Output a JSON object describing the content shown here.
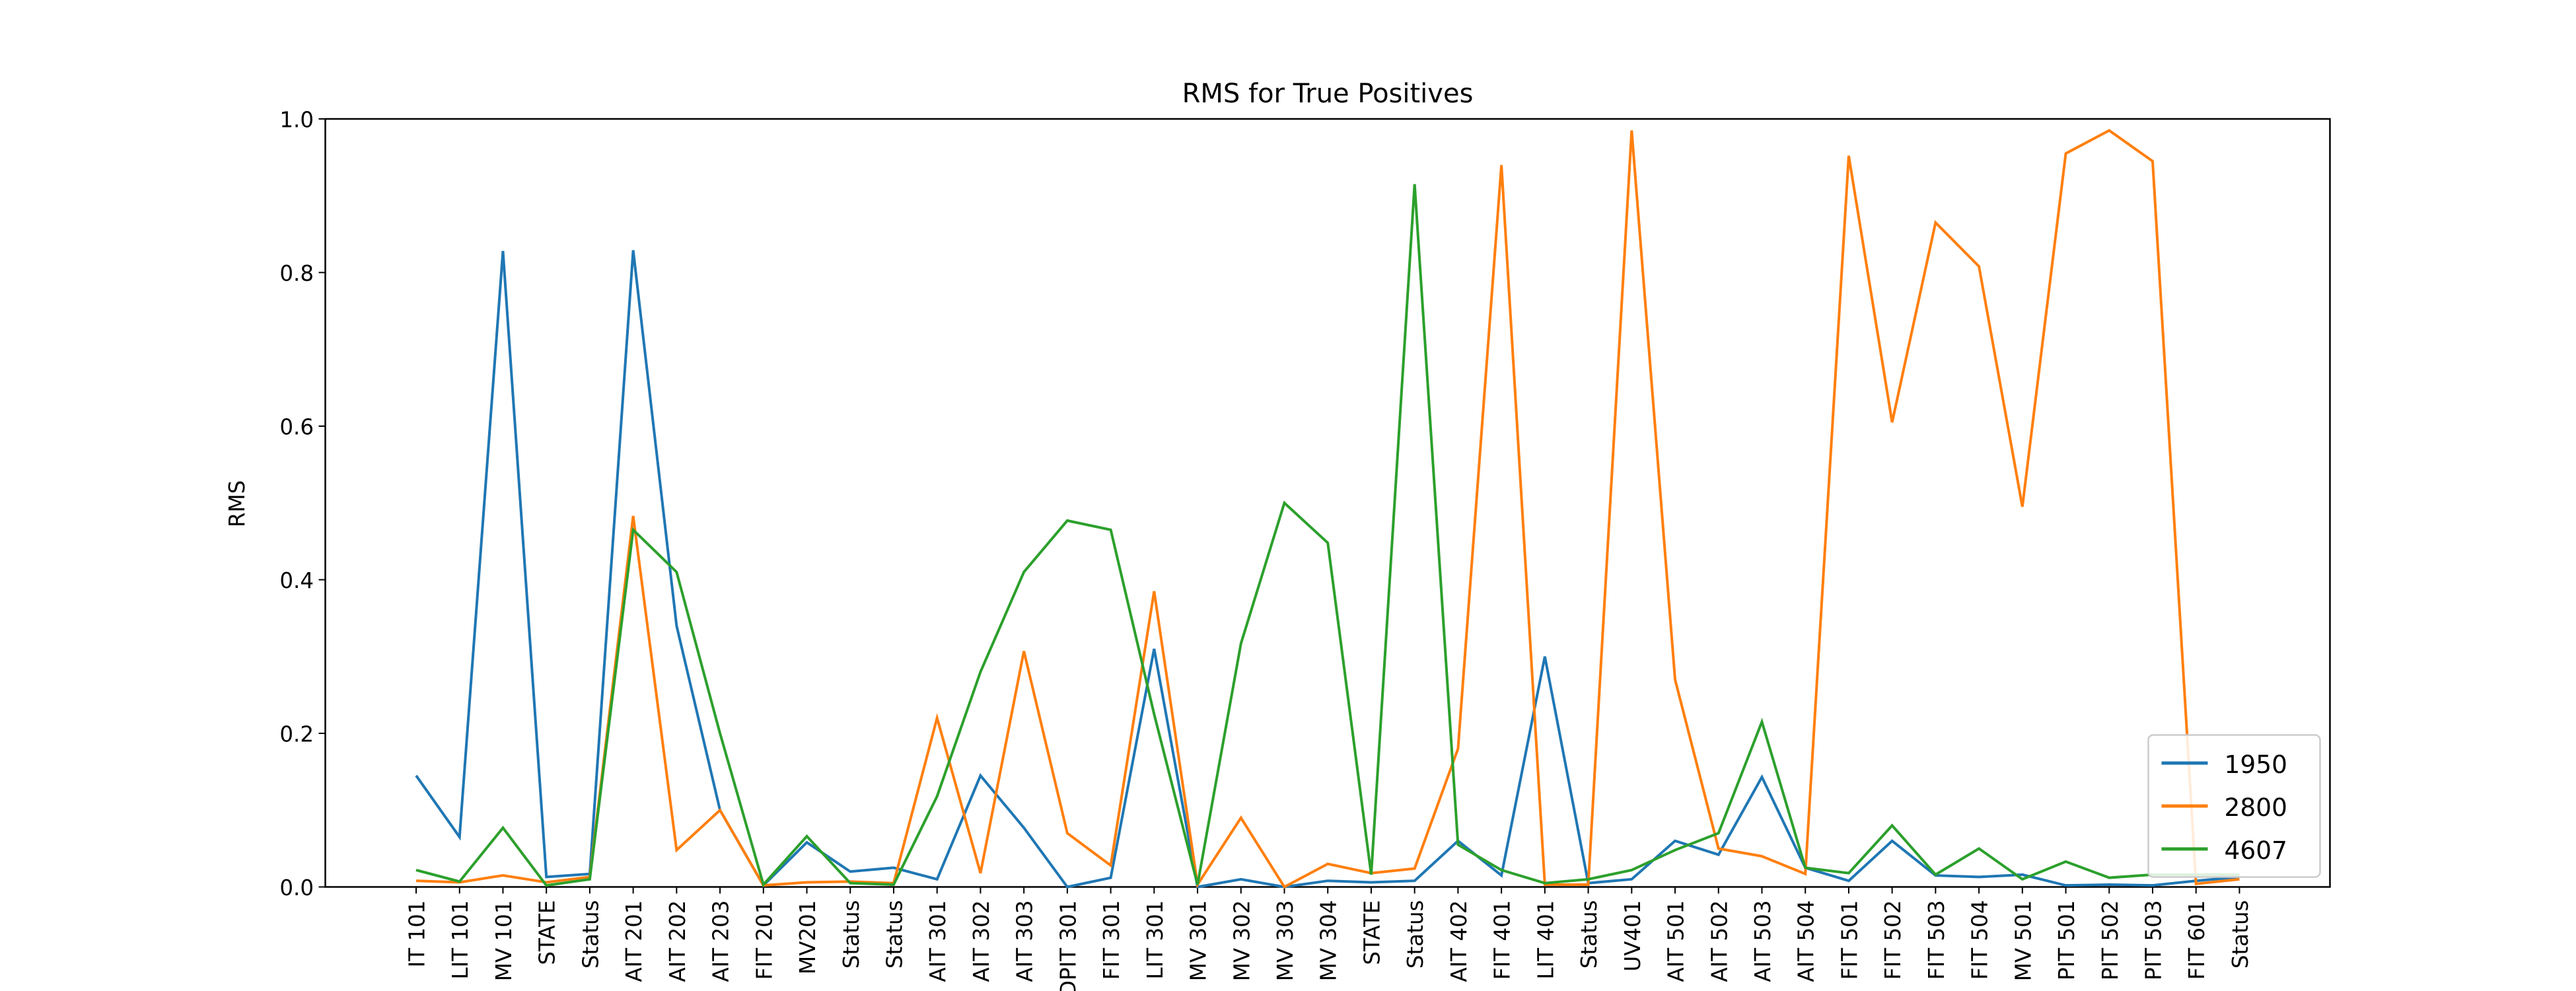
{
  "chart_data": {
    "type": "line",
    "title": "RMS for True Positives",
    "y_label": "RMS",
    "categories": [
      "IT 101",
      "LIT 101",
      "MV 101",
      "STATE",
      "Status",
      "AIT 201",
      "AIT 202",
      "AIT 203",
      "FIT 201",
      "MV201",
      "Status",
      "Status",
      "AIT 301",
      "AIT 302",
      "AIT 303",
      "DPIT 301",
      "FIT 301",
      "LIT 301",
      "MV 301",
      "MV 302",
      "MV 303",
      "MV 304",
      "STATE",
      "Status",
      "AIT 402",
      "FIT 401",
      "LIT 401",
      "Status",
      "UV401",
      "AIT 501",
      "AIT 502",
      "AIT 503",
      "AIT 504",
      "FIT 501",
      "FIT 502",
      "FIT 503",
      "FIT 504",
      "MV 501",
      "PIT 501",
      "PIT 502",
      "PIT 503",
      "FIT 601",
      "Status"
    ],
    "series": [
      {
        "name": "1950",
        "color": "#1f77b4",
        "values": [
          0.145,
          0.065,
          0.828,
          0.013,
          0.017,
          0.829,
          0.34,
          0.1,
          0.002,
          0.058,
          0.02,
          0.025,
          0.01,
          0.145,
          0.077,
          0.0,
          0.012,
          0.31,
          0.0,
          0.01,
          0.0,
          0.008,
          0.006,
          0.008,
          0.06,
          0.015,
          0.3,
          0.005,
          0.01,
          0.06,
          0.042,
          0.143,
          0.025,
          0.008,
          0.06,
          0.015,
          0.013,
          0.016,
          0.002,
          0.003,
          0.002,
          0.008,
          0.013
        ]
      },
      {
        "name": "2800",
        "color": "#ff7f0e",
        "values": [
          0.008,
          0.006,
          0.015,
          0.006,
          0.013,
          0.483,
          0.048,
          0.1,
          0.002,
          0.006,
          0.007,
          0.005,
          0.22,
          0.018,
          0.307,
          0.07,
          0.028,
          0.385,
          0.003,
          0.09,
          0.0,
          0.03,
          0.018,
          0.024,
          0.18,
          0.94,
          0.003,
          0.003,
          0.985,
          0.27,
          0.05,
          0.04,
          0.017,
          0.952,
          0.605,
          0.865,
          0.808,
          0.495,
          0.955,
          0.985,
          0.945,
          0.004,
          0.01
        ]
      },
      {
        "name": "4607",
        "color": "#2ca02c",
        "values": [
          0.022,
          0.007,
          0.077,
          0.002,
          0.01,
          0.465,
          0.41,
          0.2,
          0.003,
          0.066,
          0.005,
          0.003,
          0.118,
          0.28,
          0.41,
          0.477,
          0.465,
          0.225,
          0.003,
          0.317,
          0.5,
          0.448,
          0.016,
          0.915,
          0.055,
          0.022,
          0.005,
          0.01,
          0.022,
          0.048,
          0.07,
          0.215,
          0.025,
          0.018,
          0.08,
          0.016,
          0.05,
          0.01,
          0.033,
          0.012,
          0.016,
          0.016,
          0.016
        ]
      }
    ],
    "ylim": [
      0,
      1
    ],
    "yticks": [
      {
        "value": 0,
        "label": "0.0"
      },
      0.2,
      0.4,
      0.6,
      0.8,
      {
        "value": 1,
        "label": "1.0"
      }
    ],
    "legend": "lower right",
    "grid": false
  }
}
